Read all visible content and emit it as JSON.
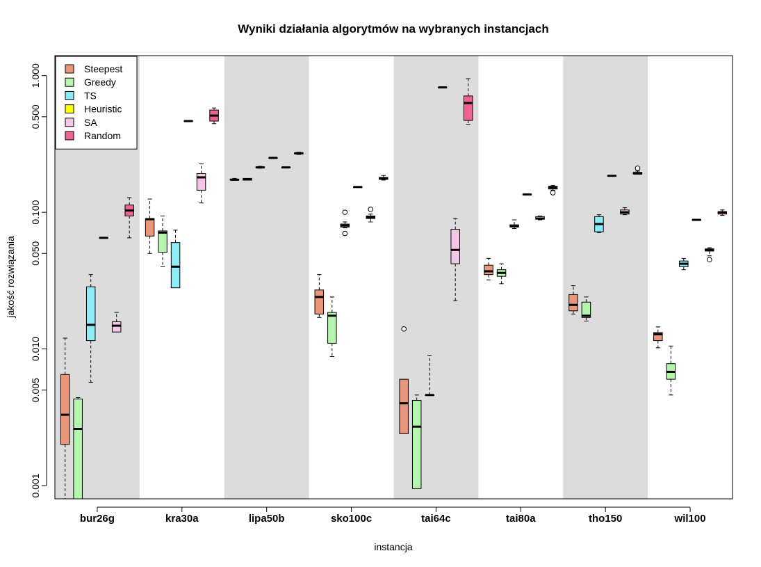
{
  "chart_data": {
    "type": "boxplot",
    "title": "Wyniki działania algorytmów na wybranych instancjach",
    "xlabel": "instancja",
    "ylabel": "jakość rozwiązania",
    "y_scale": "log",
    "ylim": [
      0.0008,
      1.4
    ],
    "yticks": [
      0.001,
      0.005,
      0.01,
      0.05,
      0.1,
      0.5,
      1.0
    ],
    "ytick_labels": [
      "0.001",
      "0.005",
      "0.010",
      "0.050",
      "0.100",
      "0.500",
      "1.000"
    ],
    "categories": [
      "bur26g",
      "kra30a",
      "lipa50b",
      "sko100c",
      "tai64c",
      "tai80a",
      "tho150",
      "wil100"
    ],
    "background_bands": "alternating grey / white per instance",
    "legend": {
      "placement": "top-left",
      "entries": [
        {
          "name": "Steepest",
          "color": "#E9967A"
        },
        {
          "name": "Greedy",
          "color": "#B6F5B0"
        },
        {
          "name": "TS",
          "color": "#8DEBF5"
        },
        {
          "name": "Heuristic",
          "color": "#FFFF00"
        },
        {
          "name": "SA",
          "color": "#F2C6E4"
        },
        {
          "name": "Random",
          "color": "#F06292"
        }
      ]
    },
    "series": [
      {
        "name": "Steepest",
        "color": "#E9967A",
        "boxes": [
          {
            "min": 0.0006,
            "q1": 0.002,
            "median": 0.0033,
            "q3": 0.0065,
            "max": 0.012
          },
          {
            "min": 0.05,
            "q1": 0.067,
            "median": 0.089,
            "q3": 0.09,
            "max": 0.125
          },
          {
            "min": 0.172,
            "q1": 0.172,
            "median": 0.173,
            "q3": 0.175,
            "max": 0.177
          },
          {
            "min": 0.017,
            "q1": 0.018,
            "median": 0.024,
            "q3": 0.027,
            "max": 0.035
          },
          {
            "min": 0.0024,
            "q1": 0.0024,
            "median": 0.004,
            "q3": 0.006,
            "max": 0.006,
            "outliers": [
              0.014
            ]
          },
          {
            "min": 0.032,
            "q1": 0.035,
            "median": 0.037,
            "q3": 0.041,
            "max": 0.046
          },
          {
            "min": 0.018,
            "q1": 0.019,
            "median": 0.021,
            "q3": 0.025,
            "max": 0.029
          },
          {
            "min": 0.0102,
            "q1": 0.0115,
            "median": 0.0128,
            "q3": 0.0132,
            "max": 0.0145
          }
        ]
      },
      {
        "name": "Greedy",
        "color": "#B6F5B0",
        "boxes": [
          {
            "min": 0.0006,
            "q1": 0.0006,
            "median": 0.0026,
            "q3": 0.0043,
            "max": 0.0044
          },
          {
            "min": 0.04,
            "q1": 0.051,
            "median": 0.071,
            "q3": 0.073,
            "max": 0.094
          },
          {
            "min": 0.172,
            "q1": 0.172,
            "median": 0.174,
            "q3": 0.177,
            "max": 0.178
          },
          {
            "min": 0.0088,
            "q1": 0.011,
            "median": 0.0175,
            "q3": 0.0185,
            "max": 0.024
          },
          {
            "min": 0.00095,
            "q1": 0.00095,
            "median": 0.0027,
            "q3": 0.0042,
            "max": 0.0046
          },
          {
            "min": 0.03,
            "q1": 0.034,
            "median": 0.036,
            "q3": 0.038,
            "max": 0.042
          },
          {
            "min": 0.016,
            "q1": 0.017,
            "median": 0.0175,
            "q3": 0.022,
            "max": 0.024
          },
          {
            "min": 0.0046,
            "q1": 0.006,
            "median": 0.0068,
            "q3": 0.0078,
            "max": 0.0105
          }
        ]
      },
      {
        "name": "TS",
        "color": "#8DEBF5",
        "boxes": [
          {
            "min": 0.0057,
            "q1": 0.0115,
            "median": 0.015,
            "q3": 0.0285,
            "max": 0.035
          },
          {
            "min": 0.028,
            "q1": 0.028,
            "median": 0.04,
            "q3": 0.06,
            "max": 0.074
          },
          {
            "min": 0.21,
            "q1": 0.212,
            "median": 0.213,
            "q3": 0.215,
            "max": 0.217
          },
          {
            "min": 0.077,
            "q1": 0.078,
            "median": 0.08,
            "q3": 0.082,
            "max": 0.085,
            "outliers": [
              0.07,
              0.1
            ]
          },
          {
            "min": 0.0046,
            "q1": 0.0046,
            "median": 0.0046,
            "q3": 0.0046,
            "max": 0.009
          },
          {
            "min": 0.076,
            "q1": 0.078,
            "median": 0.079,
            "q3": 0.081,
            "max": 0.088
          },
          {
            "min": 0.071,
            "q1": 0.072,
            "median": 0.082,
            "q3": 0.093,
            "max": 0.096
          },
          {
            "min": 0.038,
            "q1": 0.04,
            "median": 0.042,
            "q3": 0.044,
            "max": 0.046
          }
        ]
      },
      {
        "name": "Heuristic",
        "color": "#FFFF00",
        "boxes": [
          {
            "min": 0.065,
            "q1": 0.065,
            "median": 0.065,
            "q3": 0.065,
            "max": 0.065
          },
          {
            "min": 0.465,
            "q1": 0.465,
            "median": 0.465,
            "q3": 0.465,
            "max": 0.465
          },
          {
            "min": 0.25,
            "q1": 0.25,
            "median": 0.25,
            "q3": 0.25,
            "max": 0.25
          },
          {
            "min": 0.153,
            "q1": 0.153,
            "median": 0.153,
            "q3": 0.153,
            "max": 0.153
          },
          {
            "min": 0.82,
            "q1": 0.82,
            "median": 0.82,
            "q3": 0.82,
            "max": 0.82
          },
          {
            "min": 0.135,
            "q1": 0.135,
            "median": 0.135,
            "q3": 0.135,
            "max": 0.135
          },
          {
            "min": 0.185,
            "q1": 0.185,
            "median": 0.185,
            "q3": 0.185,
            "max": 0.185
          },
          {
            "min": 0.088,
            "q1": 0.088,
            "median": 0.088,
            "q3": 0.088,
            "max": 0.088
          }
        ]
      },
      {
        "name": "SA",
        "color": "#F2C6E4",
        "boxes": [
          {
            "min": 0.0133,
            "q1": 0.0133,
            "median": 0.0148,
            "q3": 0.0158,
            "max": 0.0185
          },
          {
            "min": 0.117,
            "q1": 0.145,
            "median": 0.18,
            "q3": 0.192,
            "max": 0.226
          },
          {
            "min": 0.212,
            "q1": 0.212,
            "median": 0.213,
            "q3": 0.213,
            "max": 0.213
          },
          {
            "min": 0.085,
            "q1": 0.09,
            "median": 0.092,
            "q3": 0.094,
            "max": 0.097,
            "outliers": [
              0.105
            ]
          },
          {
            "min": 0.0225,
            "q1": 0.042,
            "median": 0.053,
            "q3": 0.075,
            "max": 0.09
          },
          {
            "min": 0.088,
            "q1": 0.089,
            "median": 0.09,
            "q3": 0.093,
            "max": 0.094
          },
          {
            "min": 0.096,
            "q1": 0.097,
            "median": 0.1,
            "q3": 0.104,
            "max": 0.108
          },
          {
            "min": 0.048,
            "q1": 0.052,
            "median": 0.053,
            "q3": 0.054,
            "max": 0.055,
            "outliers": [
              0.045
            ]
          }
        ]
      },
      {
        "name": "Random",
        "color": "#F06292",
        "boxes": [
          {
            "min": 0.065,
            "q1": 0.094,
            "median": 0.103,
            "q3": 0.113,
            "max": 0.128
          },
          {
            "min": 0.445,
            "q1": 0.465,
            "median": 0.51,
            "q3": 0.56,
            "max": 0.58
          },
          {
            "min": 0.265,
            "q1": 0.267,
            "median": 0.27,
            "q3": 0.273,
            "max": 0.275
          },
          {
            "min": 0.172,
            "q1": 0.174,
            "median": 0.177,
            "q3": 0.18,
            "max": 0.186
          },
          {
            "min": 0.44,
            "q1": 0.47,
            "median": 0.63,
            "q3": 0.71,
            "max": 0.95
          },
          {
            "min": 0.145,
            "q1": 0.148,
            "median": 0.152,
            "q3": 0.155,
            "max": 0.157,
            "outliers": [
              0.139
            ]
          },
          {
            "min": 0.19,
            "q1": 0.19,
            "median": 0.193,
            "q3": 0.196,
            "max": 0.2,
            "outliers": [
              0.21
            ]
          },
          {
            "min": 0.095,
            "q1": 0.097,
            "median": 0.1,
            "q3": 0.101,
            "max": 0.104
          }
        ]
      }
    ]
  }
}
